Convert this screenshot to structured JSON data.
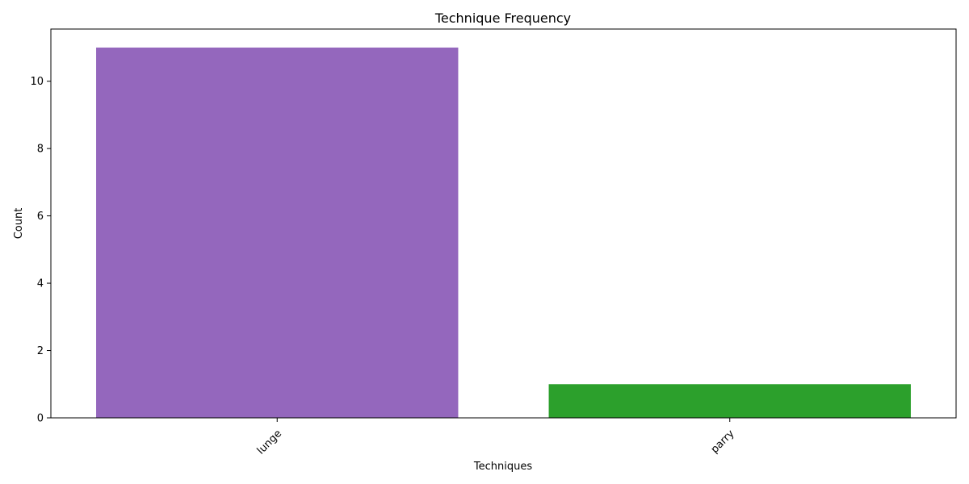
{
  "chart_data": {
    "type": "bar",
    "title": "Technique Frequency",
    "xlabel": "Techniques",
    "ylabel": "Count",
    "categories": [
      "lunge",
      "parry"
    ],
    "values": [
      11,
      1
    ],
    "colors": [
      "#9467bd",
      "#2ca02c"
    ],
    "ylim": [
      0,
      11.55
    ],
    "yticks": [
      0,
      2,
      4,
      6,
      8,
      10
    ],
    "grid": false,
    "legend": "none",
    "xtick_rotation": 45
  }
}
